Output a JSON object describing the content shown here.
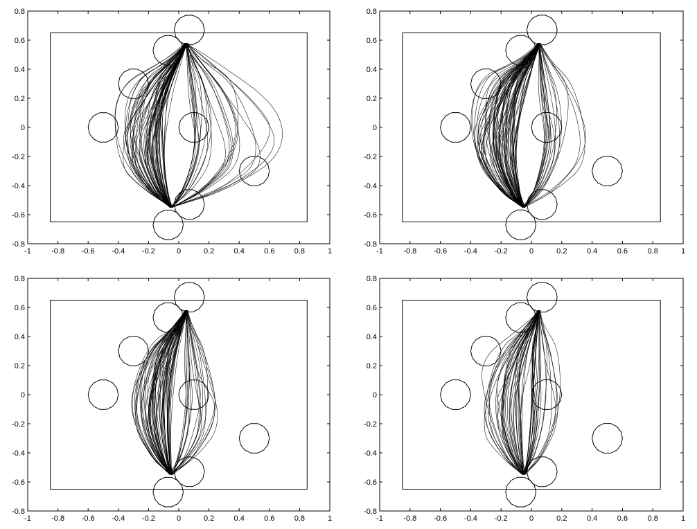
{
  "chart_data": [
    {
      "type": "line",
      "panel": "top-left",
      "title": "",
      "xlabel": "",
      "ylabel": "",
      "xlim": [
        -1,
        1
      ],
      "ylim": [
        -0.8,
        0.8
      ],
      "xticks": [
        -1,
        -0.8,
        -0.6,
        -0.4,
        -0.2,
        0,
        0.2,
        0.4,
        0.6,
        0.8,
        1
      ],
      "yticks": [
        -0.8,
        -0.6,
        -0.4,
        -0.2,
        0,
        0.2,
        0.4,
        0.6,
        0.8
      ],
      "xtick_labels": [
        "-1",
        "-0.8",
        "-0.6",
        "-0.4",
        "-0.2",
        "0",
        "0.2",
        "0.4",
        "0.6",
        "0.8",
        "1"
      ],
      "ytick_labels": [
        "-0.8",
        "-0.6",
        "-0.4",
        "-0.2",
        "0",
        "0.2",
        "0.4",
        "0.6",
        "0.8"
      ],
      "boundary": {
        "x": [
          -0.85,
          0.85
        ],
        "y": [
          -0.65,
          0.65
        ]
      },
      "start": [
        -0.05,
        -0.55
      ],
      "goal": [
        0.05,
        0.58
      ],
      "obstacles": [
        {
          "cx": 0.07,
          "cy": 0.67,
          "r": 0.1
        },
        {
          "cx": -0.07,
          "cy": 0.53,
          "r": 0.1
        },
        {
          "cx": -0.3,
          "cy": 0.3,
          "r": 0.1
        },
        {
          "cx": -0.5,
          "cy": 0.0,
          "r": 0.1
        },
        {
          "cx": 0.1,
          "cy": 0.0,
          "r": 0.1
        },
        {
          "cx": 0.5,
          "cy": -0.3,
          "r": 0.1
        },
        {
          "cx": 0.07,
          "cy": -0.53,
          "r": 0.1
        },
        {
          "cx": -0.07,
          "cy": -0.67,
          "r": 0.1
        }
      ],
      "trajectory_spread": {
        "left": [
          -0.42,
          -0.1
        ],
        "right": [
          0.1,
          0.7
        ],
        "count": 90
      }
    },
    {
      "type": "line",
      "panel": "top-right",
      "title": "",
      "xlabel": "",
      "ylabel": "",
      "xlim": [
        -1,
        1
      ],
      "ylim": [
        -0.8,
        0.8
      ],
      "xticks": [
        -1,
        -0.8,
        -0.6,
        -0.4,
        -0.2,
        0,
        0.2,
        0.4,
        0.6,
        0.8,
        1
      ],
      "yticks": [
        -0.8,
        -0.6,
        -0.4,
        -0.2,
        0,
        0.2,
        0.4,
        0.6,
        0.8
      ],
      "xtick_labels": [
        "-1",
        "-0.8",
        "-0.6",
        "-0.4",
        "-0.2",
        "0",
        "0.2",
        "0.4",
        "0.6",
        "0.8",
        "1"
      ],
      "ytick_labels": [
        "-0.8",
        "-0.6",
        "-0.4",
        "-0.2",
        "0",
        "0.2",
        "0.4",
        "0.6",
        "0.8"
      ],
      "boundary": {
        "x": [
          -0.85,
          0.85
        ],
        "y": [
          -0.65,
          0.65
        ]
      },
      "start": [
        -0.05,
        -0.55
      ],
      "goal": [
        0.05,
        0.58
      ],
      "obstacles": [
        {
          "cx": 0.07,
          "cy": 0.67,
          "r": 0.1
        },
        {
          "cx": -0.07,
          "cy": 0.53,
          "r": 0.1
        },
        {
          "cx": -0.3,
          "cy": 0.3,
          "r": 0.1
        },
        {
          "cx": -0.5,
          "cy": 0.0,
          "r": 0.1
        },
        {
          "cx": 0.1,
          "cy": 0.0,
          "r": 0.1
        },
        {
          "cx": 0.5,
          "cy": -0.3,
          "r": 0.1
        },
        {
          "cx": 0.07,
          "cy": -0.53,
          "r": 0.1
        },
        {
          "cx": -0.07,
          "cy": -0.67,
          "r": 0.1
        }
      ],
      "trajectory_spread": {
        "left": [
          -0.42,
          -0.1
        ],
        "right": [
          0.1,
          0.4
        ],
        "count": 90
      }
    },
    {
      "type": "line",
      "panel": "bottom-left",
      "title": "",
      "xlabel": "",
      "ylabel": "",
      "xlim": [
        -1,
        1
      ],
      "ylim": [
        -0.8,
        0.8
      ],
      "xticks": [
        -1,
        -0.8,
        -0.6,
        -0.4,
        -0.2,
        0,
        0.2,
        0.4,
        0.6,
        0.8,
        1
      ],
      "yticks": [
        -0.8,
        -0.6,
        -0.4,
        -0.2,
        0,
        0.2,
        0.4,
        0.6,
        0.8
      ],
      "xtick_labels": [
        "-1",
        "-0.8",
        "-0.6",
        "-0.4",
        "-0.2",
        "0",
        "0.2",
        "0.4",
        "0.6",
        "0.8",
        "1"
      ],
      "ytick_labels": [
        "-0.8",
        "-0.6",
        "-0.4",
        "-0.2",
        "0",
        "0.2",
        "0.4",
        "0.6",
        "0.8"
      ],
      "boundary": {
        "x": [
          -0.85,
          0.85
        ],
        "y": [
          -0.65,
          0.65
        ]
      },
      "start": [
        -0.05,
        -0.55
      ],
      "goal": [
        0.05,
        0.58
      ],
      "obstacles": [
        {
          "cx": 0.07,
          "cy": 0.67,
          "r": 0.1
        },
        {
          "cx": -0.07,
          "cy": 0.53,
          "r": 0.1
        },
        {
          "cx": -0.3,
          "cy": 0.3,
          "r": 0.1
        },
        {
          "cx": -0.5,
          "cy": 0.0,
          "r": 0.1
        },
        {
          "cx": 0.1,
          "cy": 0.0,
          "r": 0.1
        },
        {
          "cx": 0.5,
          "cy": -0.3,
          "r": 0.1
        },
        {
          "cx": 0.07,
          "cy": -0.53,
          "r": 0.1
        },
        {
          "cx": -0.07,
          "cy": -0.67,
          "r": 0.1
        }
      ],
      "trajectory_spread": {
        "left": [
          -0.36,
          -0.05
        ],
        "right": [
          0.05,
          0.3
        ],
        "count": 80
      }
    },
    {
      "type": "line",
      "panel": "bottom-right",
      "title": "",
      "xlabel": "",
      "ylabel": "",
      "xlim": [
        -1,
        1
      ],
      "ylim": [
        -0.8,
        0.8
      ],
      "xticks": [
        -1,
        -0.8,
        -0.6,
        -0.4,
        -0.2,
        0,
        0.2,
        0.4,
        0.6,
        0.8,
        1
      ],
      "yticks": [
        -0.8,
        -0.6,
        -0.4,
        -0.2,
        0,
        0.2,
        0.4,
        0.6,
        0.8
      ],
      "xtick_labels": [
        "-1",
        "-0.8",
        "-0.6",
        "-0.4",
        "-0.2",
        "0",
        "0.2",
        "0.4",
        "0.6",
        "0.8",
        "1"
      ],
      "ytick_labels": [
        "-0.8",
        "-0.6",
        "-0.4",
        "-0.2",
        "0",
        "0.2",
        "0.4",
        "0.6",
        "0.8"
      ],
      "boundary": {
        "x": [
          -0.85,
          0.85
        ],
        "y": [
          -0.65,
          0.65
        ]
      },
      "start": [
        -0.05,
        -0.55
      ],
      "goal": [
        0.05,
        0.58
      ],
      "obstacles": [
        {
          "cx": 0.07,
          "cy": 0.67,
          "r": 0.1
        },
        {
          "cx": -0.07,
          "cy": 0.53,
          "r": 0.1
        },
        {
          "cx": -0.3,
          "cy": 0.3,
          "r": 0.1
        },
        {
          "cx": -0.5,
          "cy": 0.0,
          "r": 0.1
        },
        {
          "cx": 0.1,
          "cy": 0.0,
          "r": 0.1
        },
        {
          "cx": 0.5,
          "cy": -0.3,
          "r": 0.1
        },
        {
          "cx": 0.07,
          "cy": -0.53,
          "r": 0.1
        },
        {
          "cx": -0.07,
          "cy": -0.67,
          "r": 0.1
        }
      ],
      "trajectory_spread": {
        "left": [
          -0.35,
          -0.05
        ],
        "right": [
          0.0,
          0.2
        ],
        "count": 60
      }
    }
  ]
}
